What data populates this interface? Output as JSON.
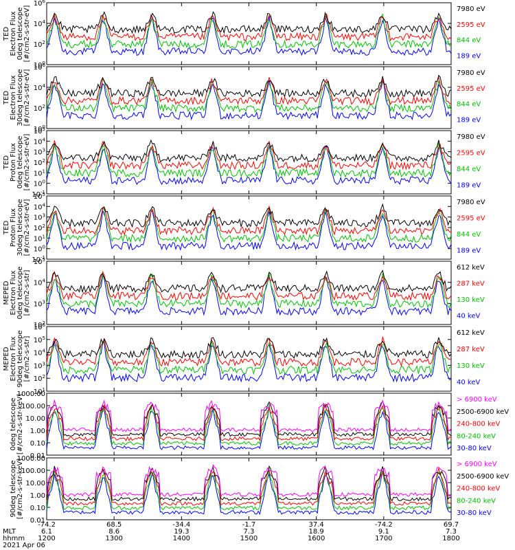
{
  "chart_data": {
    "type": "line",
    "date_label": "2021 Apr 06",
    "x_axis": {
      "row_labels": [
        "MLT",
        "hhmm"
      ],
      "tick_values": [
        "-74.2",
        "68.5",
        "-34.4",
        "-1.7",
        "37.4",
        "-74.2",
        "69.7"
      ],
      "mlt_values": [
        "6.1",
        "8.6",
        "19.3",
        "7.3",
        "18.9",
        "9.1",
        "7.3"
      ],
      "hhmm_values": [
        "1200",
        "1300",
        "1400",
        "1500",
        "1600",
        "1700",
        "1800"
      ]
    },
    "panels": [
      {
        "ylabel": [
          "TED",
          "Electron Flux",
          "0deg telescope",
          "[#/cm2-s-str-eV]"
        ],
        "y_ticks": [
          "10^6",
          "10^4",
          "10^2",
          "10^0"
        ],
        "ylim_log10": [
          0,
          6
        ],
        "legend": [
          {
            "label": "7980 eV",
            "color": "#000000"
          },
          {
            "label": "2595 eV",
            "color": "#ff0000"
          },
          {
            "label": "844 eV",
            "color": "#00c000"
          },
          {
            "label": "189 eV",
            "color": "#0000ff"
          }
        ]
      },
      {
        "ylabel": [
          "TED",
          "Electron Flux",
          "30deg telescope",
          "[#/cm2-s-str-eV]"
        ],
        "y_ticks": [
          "10^6",
          "10^4",
          "10^2",
          "10^0"
        ],
        "ylim_log10": [
          0,
          6
        ],
        "legend": [
          {
            "label": "7980 eV",
            "color": "#000000"
          },
          {
            "label": "2595 eV",
            "color": "#ff0000"
          },
          {
            "label": "844 eV",
            "color": "#00c000"
          },
          {
            "label": "189 eV",
            "color": "#0000ff"
          }
        ]
      },
      {
        "ylabel": [
          "TED",
          "Proton Flux",
          "0deg telescope",
          "[#/cm2-s-str-eV]"
        ],
        "y_ticks": [
          "10^5",
          "10^4",
          "10^3",
          "10^2",
          "10^1",
          "10^0",
          "10^-1"
        ],
        "ylim_log10": [
          -1,
          5
        ],
        "legend": [
          {
            "label": "7980 eV",
            "color": "#000000"
          },
          {
            "label": "2595 eV",
            "color": "#ff0000"
          },
          {
            "label": "844 eV",
            "color": "#00c000"
          },
          {
            "label": "189 eV",
            "color": "#0000ff"
          }
        ]
      },
      {
        "ylabel": [
          "TED",
          "Proton Flux",
          "30deg telescope",
          "[#/cm2-s-str-eV]"
        ],
        "y_ticks": [
          "10^5",
          "10^4",
          "10^3",
          "10^2",
          "10^1",
          "10^0",
          "10^-1"
        ],
        "ylim_log10": [
          -1,
          5
        ],
        "legend": [
          {
            "label": "7980 eV",
            "color": "#000000"
          },
          {
            "label": "2595 eV",
            "color": "#ff0000"
          },
          {
            "label": "844 eV",
            "color": "#00c000"
          },
          {
            "label": "189 eV",
            "color": "#0000ff"
          }
        ]
      },
      {
        "ylabel": [
          "MEPED",
          "Electron Flux",
          "0deg telescope",
          "[#/cm2-s-str]"
        ],
        "y_ticks": [
          "10^5",
          "10^4",
          "10^3",
          "10^2"
        ],
        "ylim_log10": [
          1.5,
          5
        ],
        "legend": [
          {
            "label": "612 keV",
            "color": "#000000"
          },
          {
            "label": "287 keV",
            "color": "#ff0000"
          },
          {
            "label": "130 keV",
            "color": "#00c000"
          },
          {
            "label": "40 keV",
            "color": "#0000ff"
          }
        ]
      },
      {
        "ylabel": [
          "MEPED",
          "Electron Flux",
          "90deg telescope",
          "[#/cm2-s-str]"
        ],
        "y_ticks": [
          "10^6",
          "10^5",
          "10^4",
          "10^3",
          "10^2",
          "10^1"
        ],
        "ylim_log10": [
          1,
          6
        ],
        "legend": [
          {
            "label": "612 keV",
            "color": "#000000"
          },
          {
            "label": "287 keV",
            "color": "#ff0000"
          },
          {
            "label": "130 keV",
            "color": "#00c000"
          },
          {
            "label": "40 keV",
            "color": "#0000ff"
          }
        ]
      },
      {
        "ylabel": [
          "0deg telescope",
          "[#/cm2-s-str-keV]"
        ],
        "y_ticks": [
          "1000.00",
          "100.00",
          "10.00",
          "1.00",
          "0.10",
          "0.01"
        ],
        "ylim_log10": [
          -2,
          3
        ],
        "legend": [
          {
            "label": "> 6900 keV",
            "color": "#ff00ff"
          },
          {
            "label": "2500-6900 keV",
            "color": "#000000"
          },
          {
            "label": "240-800 keV",
            "color": "#ff0000"
          },
          {
            "label": "80-240 keV",
            "color": "#00c000"
          },
          {
            "label": "30-80 keV",
            "color": "#0000ff"
          }
        ]
      },
      {
        "ylabel": [
          "90deg telescope",
          "[#/cm2-s-str-keV]"
        ],
        "y_ticks": [
          "1000.00",
          "100.00",
          "10.00",
          "1.00",
          "0.10",
          "0.01"
        ],
        "ylim_log10": [
          -2,
          3
        ],
        "legend": [
          {
            "label": "> 6900 keV",
            "color": "#ff00ff"
          },
          {
            "label": "2500-6900 keV",
            "color": "#000000"
          },
          {
            "label": "240-800 keV",
            "color": "#ff0000"
          },
          {
            "label": "80-240 keV",
            "color": "#00c000"
          },
          {
            "label": "30-80 keV",
            "color": "#0000ff"
          }
        ]
      }
    ],
    "colors": {
      "black": "#000000",
      "red": "#ff0000",
      "green": "#00c000",
      "blue": "#0000ff",
      "magenta": "#ff00ff"
    }
  }
}
